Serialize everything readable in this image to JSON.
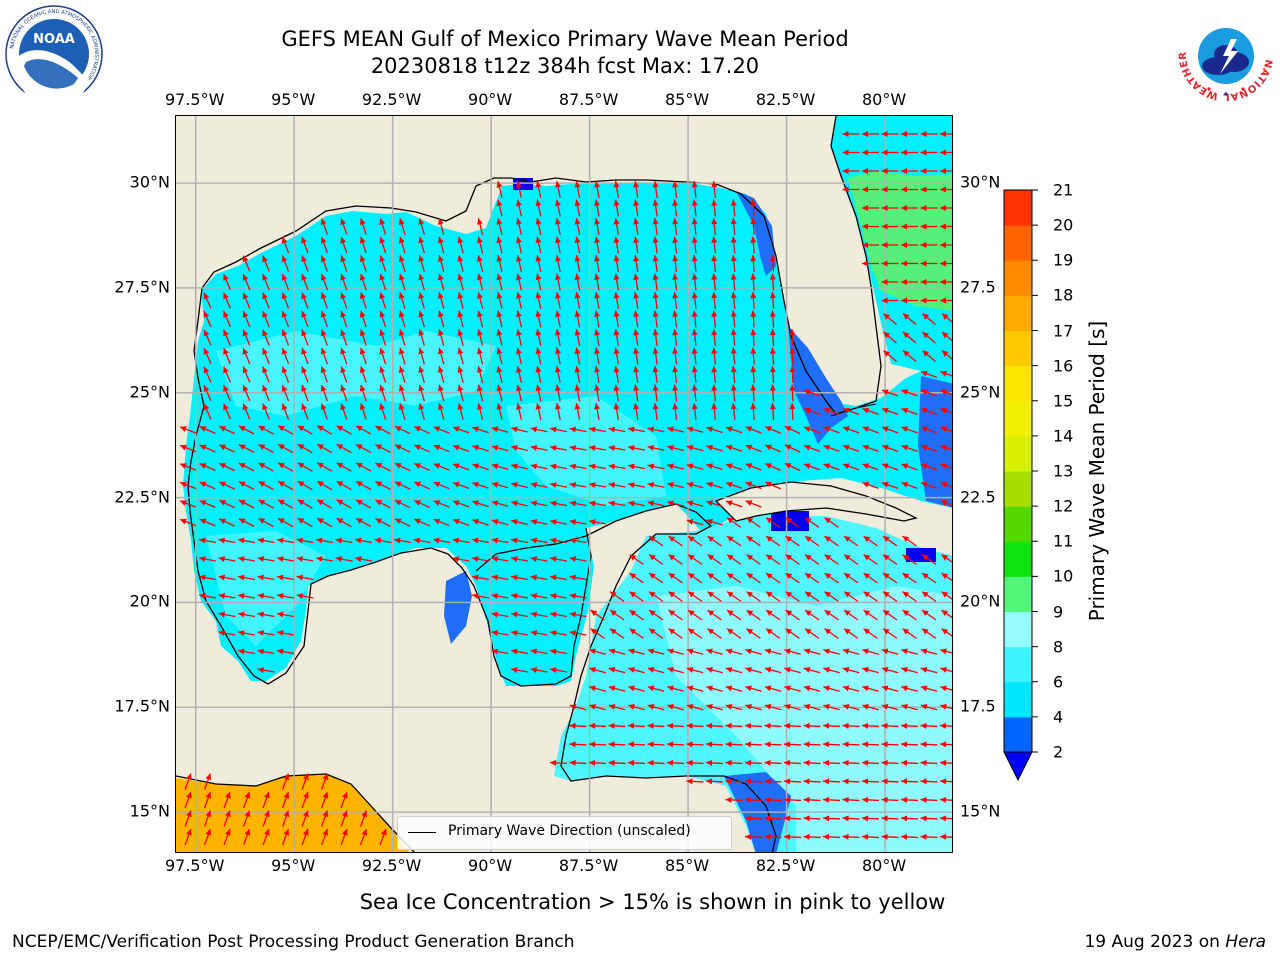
{
  "title": {
    "line1": "GEFS MEAN Gulf of Mexico Primary Wave Mean Period",
    "line2": "20230818 t12z 384h fcst   Max: 17.20"
  },
  "logos": {
    "noaa": {
      "name": "NOAA",
      "ring_text": "NATIONAL OCEANIC AND ATMOSPHERIC ADMINISTRATION",
      "bottom_text": "U.S. DEPARTMENT OF COMMERCE"
    },
    "nws": {
      "ring_text": "NATIONAL WEATHER SERVICE"
    }
  },
  "axes": {
    "lon_labels": [
      "97.5°W",
      "95°W",
      "92.5°W",
      "90°W",
      "87.5°W",
      "85°W",
      "82.5°W",
      "80°W"
    ],
    "lon_values": [
      -97.5,
      -95,
      -92.5,
      -90,
      -87.5,
      -85,
      -82.5,
      -80
    ],
    "lat_labels": [
      "30°N",
      "27.5°N",
      "25°N",
      "22.5°N",
      "20°N",
      "17.5°N",
      "15°N"
    ],
    "lat_labels_right": [
      "30°N",
      "27.5",
      "25°N",
      "22.5",
      "20°N",
      "17.5",
      "15°N"
    ],
    "lat_values": [
      30,
      27.5,
      25,
      22.5,
      20,
      17.5,
      15
    ],
    "lon_range": [
      -98,
      -78.25
    ],
    "lat_range": [
      14.0,
      31.6
    ]
  },
  "legend": {
    "line_label": "Primary Wave Direction (unscaled)"
  },
  "colorbar": {
    "label": "Primary Wave Mean Period [s]",
    "ticks": [
      "2",
      "4",
      "6",
      "8",
      "9",
      "10",
      "11",
      "12",
      "13",
      "14",
      "15",
      "16",
      "17",
      "18",
      "19",
      "20",
      "21"
    ],
    "colors": [
      "#0064ff",
      "#00e6ff",
      "#3cf3ff",
      "#96fbff",
      "#50f57a",
      "#10e410",
      "#55d800",
      "#a5de00",
      "#d7f000",
      "#f0f000",
      "#ffe600",
      "#ffc800",
      "#ffaa00",
      "#ff8c00",
      "#ff6400",
      "#ff3200"
    ],
    "under_color": "#0000ff"
  },
  "colors": {
    "land": "#efecdc",
    "grid": "#b0b0b0",
    "coast": "#000000",
    "arrow": "#ff0000",
    "ocean_main": "#00f0ff",
    "ocean_light": "#50f6ff",
    "ocean_pale": "#96fbff",
    "dark_blue": "#1e6ef8",
    "green": "#55f07a",
    "orange": "#ffb400"
  },
  "chart_data": {
    "type": "heatmap",
    "max_value": 17.2,
    "units": "s",
    "contours": [
      {
        "level": "2-4",
        "color": "#1e6ef8",
        "region": "west Florida shelf"
      },
      {
        "level": "9-10",
        "color": "#55f07a",
        "region": "Atlantic east of Florida"
      },
      {
        "level": "16-17",
        "color": "#ffb400",
        "region": "Pacific south of Mexico"
      }
    ]
  },
  "footer": {
    "note": "Sea Ice Concentration > 15% is shown in pink to yellow",
    "left": "NCEP/EMC/Verification Post Processing Product Generation Branch",
    "right_date": "19 Aug 2023 on ",
    "right_host": "Hera"
  }
}
